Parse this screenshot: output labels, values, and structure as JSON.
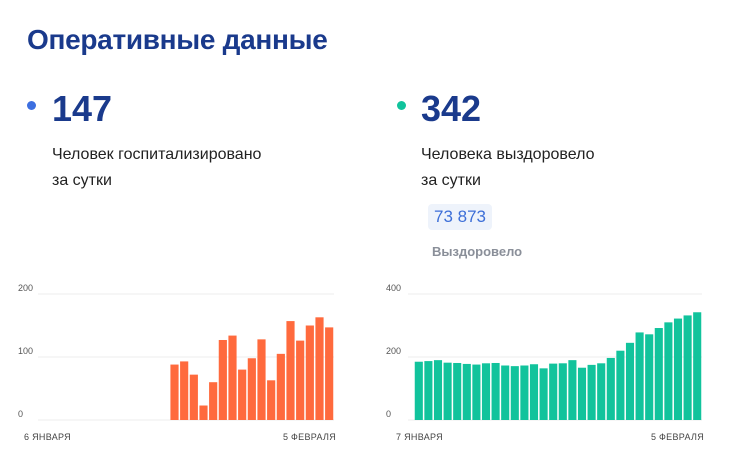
{
  "title": "Оперативные данные",
  "hospitalized": {
    "value": "147",
    "label_line1": "Человек госпитализировано",
    "label_line2": "за сутки",
    "dot_color": "#3d6fe0"
  },
  "recovered": {
    "value": "342",
    "label_line1": "Человека выздоровело",
    "label_line2": "за сутки",
    "dot_color": "#11c39c",
    "total_value": "73 873",
    "total_label": "Выздоровело"
  },
  "chart_data": [
    {
      "type": "bar",
      "color": "#ff6a3d",
      "ylim": [
        0,
        200
      ],
      "yticks": [
        "0",
        "100",
        "200"
      ],
      "x_start_label": "6 ЯНВАРЯ",
      "x_end_label": "5 ФЕВРАЛЯ",
      "values": [
        null,
        null,
        null,
        null,
        null,
        null,
        null,
        null,
        null,
        null,
        null,
        null,
        null,
        88,
        93,
        72,
        23,
        60,
        127,
        134,
        80,
        98,
        128,
        63,
        105,
        157,
        126,
        150,
        163,
        147
      ]
    },
    {
      "type": "bar",
      "color": "#11c39c",
      "ylim": [
        0,
        400
      ],
      "yticks": [
        "0",
        "200",
        "400"
      ],
      "x_start_label": "7 ЯНВАРЯ",
      "x_end_label": "5 ФЕВРАЛЯ",
      "values": [
        185,
        187,
        190,
        182,
        181,
        178,
        176,
        180,
        181,
        173,
        171,
        173,
        177,
        164,
        179,
        180,
        190,
        166,
        175,
        180,
        197,
        220,
        245,
        278,
        272,
        292,
        310,
        322,
        332,
        342
      ]
    }
  ]
}
